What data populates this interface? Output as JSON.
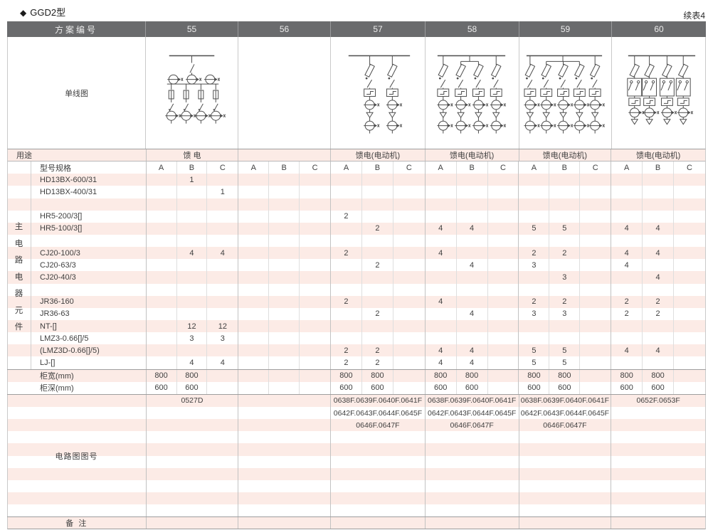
{
  "page": {
    "title_marker": "◆",
    "title": "GGD2型",
    "continued": "续表4"
  },
  "table": {
    "header": {
      "label": "方案编号",
      "schemes": [
        "55",
        "56",
        "57",
        "58",
        "59",
        "60"
      ]
    },
    "diagram_row_label": "单线图",
    "diagrams": [
      {
        "scheme": "55",
        "kind": "incomer-feeder",
        "branches": 4,
        "symbols": "busbar, switch, 3 meters, 4 fused feeder branches"
      },
      {
        "scheme": "56",
        "kind": "empty",
        "branches": 0,
        "symbols": ""
      },
      {
        "scheme": "57",
        "kind": "motor-feeder",
        "branches": 2,
        "symbols": "busbar, fuse-switch, contactor, CT, thermal relay per branch"
      },
      {
        "scheme": "58",
        "kind": "motor-feeder",
        "branches": 4,
        "symbols": "busbar, fuse-switch, contactor, CT, thermal relay per branch"
      },
      {
        "scheme": "59",
        "kind": "motor-feeder",
        "branches": 5,
        "symbols": "busbar, fuse-switch, contactor, CT, thermal relay per branch"
      },
      {
        "scheme": "60",
        "kind": "motor-reversing",
        "branches": 4,
        "symbols": "busbar, fuse-switch, reversing contactor pair, contactor, CT per branch"
      }
    ],
    "usage": {
      "label": "用途",
      "values": [
        "馈 电",
        "",
        "馈电(电动机)",
        "馈电(电动机)",
        "馈电(电动机)",
        "馈电(电动机)"
      ]
    },
    "spec": {
      "label": "型号规格",
      "sub_columns": [
        "A",
        "B",
        "C"
      ]
    },
    "side_label": "主电路电器元件",
    "component_rows": [
      {
        "label": "HD13BX-600/31",
        "cells": [
          "",
          "1",
          "",
          "",
          "",
          "",
          "",
          "",
          "",
          "",
          "",
          "",
          "",
          "",
          "",
          "",
          "",
          ""
        ]
      },
      {
        "label": "HD13BX-400/31",
        "cells": [
          "",
          "",
          "1",
          "",
          "",
          "",
          "",
          "",
          "",
          "",
          "",
          "",
          "",
          "",
          "",
          "",
          "",
          ""
        ]
      },
      {
        "label": "",
        "cells": [
          "",
          "",
          "",
          "",
          "",
          "",
          "",
          "",
          "",
          "",
          "",
          "",
          "",
          "",
          "",
          "",
          "",
          ""
        ]
      },
      {
        "label": "HR5-200/3[]",
        "cells": [
          "",
          "",
          "",
          "",
          "",
          "",
          "2",
          "",
          "",
          "",
          "",
          "",
          "",
          "",
          "",
          "",
          "",
          ""
        ]
      },
      {
        "label": "HR5-100/3[]",
        "cells": [
          "",
          "",
          "",
          "",
          "",
          "",
          "",
          "2",
          "",
          "4",
          "4",
          "",
          "5",
          "5",
          "",
          "4",
          "4",
          ""
        ]
      },
      {
        "label": "",
        "cells": [
          "",
          "",
          "",
          "",
          "",
          "",
          "",
          "",
          "",
          "",
          "",
          "",
          "",
          "",
          "",
          "",
          "",
          ""
        ]
      },
      {
        "label": "CJ20-100/3",
        "cells": [
          "",
          "4",
          "4",
          "",
          "",
          "",
          "2",
          "",
          "",
          "4",
          "",
          "",
          "2",
          "2",
          "",
          "4",
          "4",
          ""
        ]
      },
      {
        "label": "CJ20-63/3",
        "cells": [
          "",
          "",
          "",
          "",
          "",
          "",
          "",
          "2",
          "",
          "",
          "4",
          "",
          "3",
          "",
          "",
          "4",
          "",
          ""
        ]
      },
      {
        "label": "CJ20-40/3",
        "cells": [
          "",
          "",
          "",
          "",
          "",
          "",
          "",
          "",
          "",
          "",
          "",
          "",
          "",
          "3",
          "",
          "",
          "4",
          ""
        ]
      },
      {
        "label": "",
        "cells": [
          "",
          "",
          "",
          "",
          "",
          "",
          "",
          "",
          "",
          "",
          "",
          "",
          "",
          "",
          "",
          "",
          "",
          ""
        ]
      },
      {
        "label": "JR36-160",
        "cells": [
          "",
          "",
          "",
          "",
          "",
          "",
          "2",
          "",
          "",
          "4",
          "",
          "",
          "2",
          "2",
          "",
          "2",
          "2",
          ""
        ]
      },
      {
        "label": "JR36-63",
        "cells": [
          "",
          "",
          "",
          "",
          "",
          "",
          "",
          "2",
          "",
          "",
          "4",
          "",
          "3",
          "3",
          "",
          "2",
          "2",
          ""
        ]
      },
      {
        "label": "NT-[]",
        "cells": [
          "",
          "12",
          "12",
          "",
          "",
          "",
          "",
          "",
          "",
          "",
          "",
          "",
          "",
          "",
          "",
          "",
          "",
          ""
        ]
      },
      {
        "label": "LMZ3-0.66[]/5",
        "cells": [
          "",
          "3",
          "3",
          "",
          "",
          "",
          "",
          "",
          "",
          "",
          "",
          "",
          "",
          "",
          "",
          "",
          "",
          ""
        ]
      },
      {
        "label": "(LMZ3D-0.66[]/5)",
        "cells": [
          "",
          "",
          "",
          "",
          "",
          "",
          "2",
          "2",
          "",
          "4",
          "4",
          "",
          "5",
          "5",
          "",
          "4",
          "4",
          ""
        ]
      },
      {
        "label": "LJ-[]",
        "cells": [
          "",
          "4",
          "4",
          "",
          "",
          "",
          "2",
          "2",
          "",
          "4",
          "4",
          "",
          "5",
          "5",
          "",
          "",
          "",
          ""
        ]
      }
    ],
    "size_rows": [
      {
        "label": "柜宽(mm)",
        "cells": [
          "800",
          "800",
          "",
          "",
          "",
          "",
          "800",
          "800",
          "",
          "800",
          "800",
          "",
          "800",
          "800",
          "",
          "800",
          "800",
          ""
        ]
      },
      {
        "label": "柜深(mm)",
        "cells": [
          "600",
          "600",
          "",
          "",
          "",
          "",
          "600",
          "600",
          "",
          "600",
          "600",
          "",
          "600",
          "600",
          "",
          "600",
          "600",
          ""
        ]
      }
    ],
    "circuit": {
      "label": "电路图图号",
      "rows": [
        [
          "0527D",
          "",
          "0638F.0639F.0640F.0641F",
          "0638F.0639F.0640F.0641F",
          "0638F.0639F.0640F.0641F",
          "0652F.0653F"
        ],
        [
          "",
          "",
          "0642F.0643F.0644F.0645F",
          "0642F.0643F.0644F.0645F",
          "0642F.0643F.0644F.0645F",
          ""
        ],
        [
          "",
          "",
          "0646F.0647F",
          "0646F.0647F",
          "0646F.0647F",
          ""
        ],
        [
          "",
          "",
          "",
          "",
          "",
          ""
        ],
        [
          "",
          "",
          "",
          "",
          "",
          ""
        ],
        [
          "",
          "",
          "",
          "",
          "",
          ""
        ],
        [
          "",
          "",
          "",
          "",
          "",
          ""
        ],
        [
          "",
          "",
          "",
          "",
          "",
          ""
        ],
        [
          "",
          "",
          "",
          "",
          "",
          ""
        ],
        [
          "",
          "",
          "",
          "",
          "",
          ""
        ]
      ]
    },
    "remark": {
      "label": "备 注",
      "values": [
        "",
        "",
        "",
        "",
        "",
        ""
      ]
    }
  },
  "colors": {
    "stripe_pink": "#fcebe6",
    "header_bg": "#6a6b6d",
    "header_text": "#ececec",
    "diagram_stroke": "#4d4d4d"
  }
}
